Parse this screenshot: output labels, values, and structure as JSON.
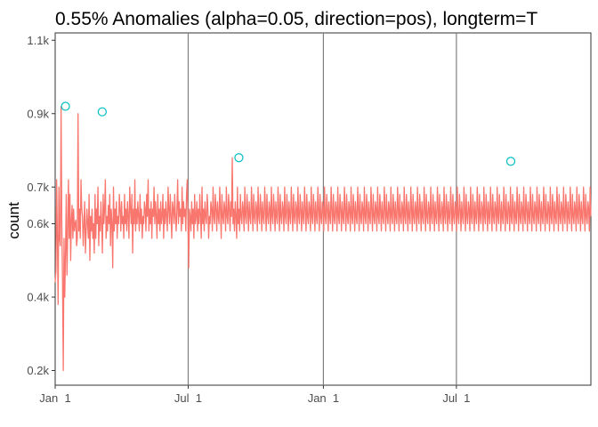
{
  "chart_data": {
    "type": "line",
    "title": "0.55% Anomalies (alpha=0.05, direction=pos), longterm=T",
    "xlabel": "",
    "ylabel": "count",
    "x_ticks": [
      "Jan  1",
      "Jul  1",
      "Jan  1",
      "Jul  1"
    ],
    "x_tick_days": [
      0,
      181,
      365,
      546
    ],
    "x_range_days": [
      0,
      729
    ],
    "vertical_lines_days": [
      181,
      365,
      546
    ],
    "y_ticks": [
      200,
      400,
      600,
      700,
      900,
      1100
    ],
    "y_tick_labels": [
      "0.2k",
      "0.4k",
      "0.6k",
      "0.7k",
      "0.9k",
      "1.1k"
    ],
    "ylim": [
      160,
      1120
    ],
    "grid": false,
    "series": [
      {
        "color": "#f8766d",
        "values": [
          440,
          470,
          720,
          560,
          380,
          700,
          560,
          540,
          920,
          600,
          440,
          200,
          560,
          400,
          520,
          680,
          460,
          580,
          720,
          560,
          680,
          500,
          610,
          650,
          560,
          640,
          580,
          600,
          610,
          540,
          560,
          900,
          580,
          640,
          560,
          720,
          640,
          620,
          540,
          600,
          660,
          520,
          580,
          640,
          600,
          560,
          680,
          500,
          620,
          580,
          640,
          560,
          600,
          520,
          680,
          560,
          640,
          600,
          700,
          540,
          620,
          580,
          660,
          600,
          520,
          680,
          600,
          640,
          720,
          560,
          620,
          580,
          650,
          600,
          680,
          540,
          640,
          600,
          480,
          700,
          580,
          640,
          600,
          660,
          560,
          620,
          600,
          680,
          640,
          580,
          660,
          600,
          620,
          560,
          680,
          600,
          640,
          580,
          660,
          620,
          560,
          700,
          640,
          600,
          680,
          520,
          640,
          600,
          720,
          580,
          640,
          600,
          660,
          620,
          580,
          680,
          600,
          640,
          560,
          620,
          600,
          660,
          640,
          580,
          680,
          620,
          720,
          580,
          640,
          600,
          660,
          560,
          640,
          620,
          700,
          600,
          660,
          620,
          560,
          680,
          600,
          640,
          580,
          660,
          600,
          620,
          680,
          560,
          640,
          600,
          660,
          620,
          580,
          700,
          640,
          600,
          680,
          620,
          560,
          660,
          640,
          600,
          680,
          620,
          580,
          640,
          720,
          600,
          660,
          620,
          640,
          580,
          700,
          600,
          660,
          620,
          640,
          580,
          680,
          720,
          600,
          480,
          640,
          620,
          580,
          660,
          600,
          640,
          560,
          680,
          600,
          620,
          660,
          580,
          640,
          600,
          680,
          620,
          560,
          700,
          600,
          640,
          580,
          660,
          620,
          600,
          680,
          640,
          560,
          620,
          600,
          660,
          640,
          580,
          700,
          620,
          600,
          680,
          640,
          580,
          660,
          620,
          600,
          700,
          640,
          560,
          680,
          620,
          600,
          660,
          640,
          580,
          700,
          620,
          600,
          680,
          640,
          580,
          660,
          620,
          780,
          600,
          640,
          580,
          660,
          620,
          560,
          700,
          600,
          640,
          580,
          680,
          620,
          600,
          660,
          640,
          580,
          700,
          620,
          600,
          680,
          640,
          580,
          660,
          620,
          600,
          700,
          640,
          580,
          680,
          620,
          600,
          660,
          640,
          580,
          700,
          620,
          600,
          680,
          640,
          580,
          660,
          620,
          600,
          700,
          640,
          580,
          680,
          620,
          600,
          660,
          640,
          580,
          700,
          620,
          600,
          680,
          640,
          580,
          660,
          620,
          600,
          700,
          640,
          580,
          680,
          620,
          600,
          660,
          640,
          580,
          700,
          620,
          600,
          680,
          640,
          580,
          660,
          620,
          600,
          700,
          640,
          580,
          680,
          620,
          600,
          660,
          640,
          580,
          700,
          620,
          600,
          680,
          640,
          580,
          660,
          620,
          600,
          700,
          640,
          580,
          680,
          620,
          600,
          660,
          640,
          580,
          700,
          620,
          600,
          680,
          640,
          580,
          660,
          620,
          600,
          700,
          640,
          580,
          680,
          620,
          600,
          660,
          640,
          580,
          700,
          620,
          600,
          680,
          640,
          580,
          660,
          620,
          600,
          700,
          640,
          580,
          680,
          620,
          600,
          660,
          640,
          580,
          700,
          620,
          600,
          680,
          640,
          580,
          660,
          620,
          600,
          700,
          640,
          580,
          680,
          620,
          600,
          660,
          640,
          580,
          700,
          620,
          600,
          680,
          640,
          580,
          660,
          620,
          600,
          700,
          640,
          580,
          680,
          620,
          600,
          660,
          640,
          580,
          700,
          620,
          600,
          680,
          640,
          580,
          660,
          620,
          600,
          700,
          640,
          580,
          680,
          620,
          600,
          660,
          640,
          580,
          700,
          620,
          600,
          680,
          640,
          580,
          660,
          620,
          600,
          700,
          640,
          580,
          680,
          620,
          600,
          660,
          640,
          580,
          700,
          620,
          600,
          680,
          640,
          580,
          660,
          620,
          600,
          700,
          640,
          580,
          680,
          620,
          600,
          660,
          640,
          580,
          700,
          620,
          600,
          680,
          640,
          580,
          660,
          620,
          600,
          700,
          640,
          580,
          680,
          620,
          600,
          660,
          640,
          580,
          700,
          620,
          600,
          680,
          640,
          580,
          660,
          620,
          600,
          700,
          640,
          580,
          680,
          620,
          600,
          660,
          640,
          580,
          700,
          620,
          600,
          680,
          640,
          580,
          660,
          620,
          600,
          700,
          640,
          580,
          680,
          620,
          600,
          660,
          640,
          580,
          700,
          620,
          600,
          680,
          640,
          580,
          660,
          620,
          600,
          700,
          640,
          580,
          680,
          620,
          600,
          660,
          640,
          580,
          700,
          620,
          600,
          680,
          640,
          580,
          660,
          620,
          600,
          700,
          640,
          580,
          680,
          620,
          600,
          660,
          640,
          580,
          700,
          620,
          600,
          680,
          640,
          580,
          660,
          620,
          600,
          700,
          640,
          580,
          680,
          620,
          600,
          660,
          640,
          580,
          700,
          620,
          600,
          680,
          640,
          580,
          660,
          620,
          600,
          700,
          640,
          580,
          680,
          620,
          600,
          660,
          640,
          580,
          700,
          620,
          600,
          680,
          640,
          580,
          660,
          620,
          600,
          700,
          640,
          580,
          680,
          620,
          600,
          660,
          640,
          580,
          700,
          620,
          600,
          680,
          640,
          580,
          660,
          620,
          600,
          700,
          640,
          580,
          680,
          620,
          600,
          660,
          640,
          580,
          700,
          620,
          600,
          680,
          640,
          580,
          660,
          620,
          600,
          700,
          640,
          580,
          680,
          620,
          600,
          660,
          640,
          580,
          700,
          620,
          600,
          680,
          640,
          580,
          660,
          620,
          600,
          700,
          640,
          580,
          680,
          620,
          600,
          660,
          640,
          580,
          700,
          620,
          600,
          680,
          640,
          580,
          660,
          620,
          600,
          700,
          640,
          580,
          680,
          620,
          600,
          660,
          640,
          580,
          700,
          620,
          600,
          680,
          640,
          580,
          660,
          620,
          600,
          700,
          640,
          580,
          680,
          620,
          600,
          660,
          640,
          580,
          700,
          620,
          600,
          680,
          640,
          580,
          660,
          620,
          600,
          700,
          640,
          580,
          680,
          620,
          600,
          660,
          640,
          580,
          700,
          620
        ]
      }
    ],
    "anomalies": {
      "color": "#00bfc4",
      "points": [
        {
          "day": 14,
          "value": 920
        },
        {
          "day": 64,
          "value": 905
        },
        {
          "day": 250,
          "value": 780
        },
        {
          "day": 620,
          "value": 770
        }
      ]
    }
  }
}
